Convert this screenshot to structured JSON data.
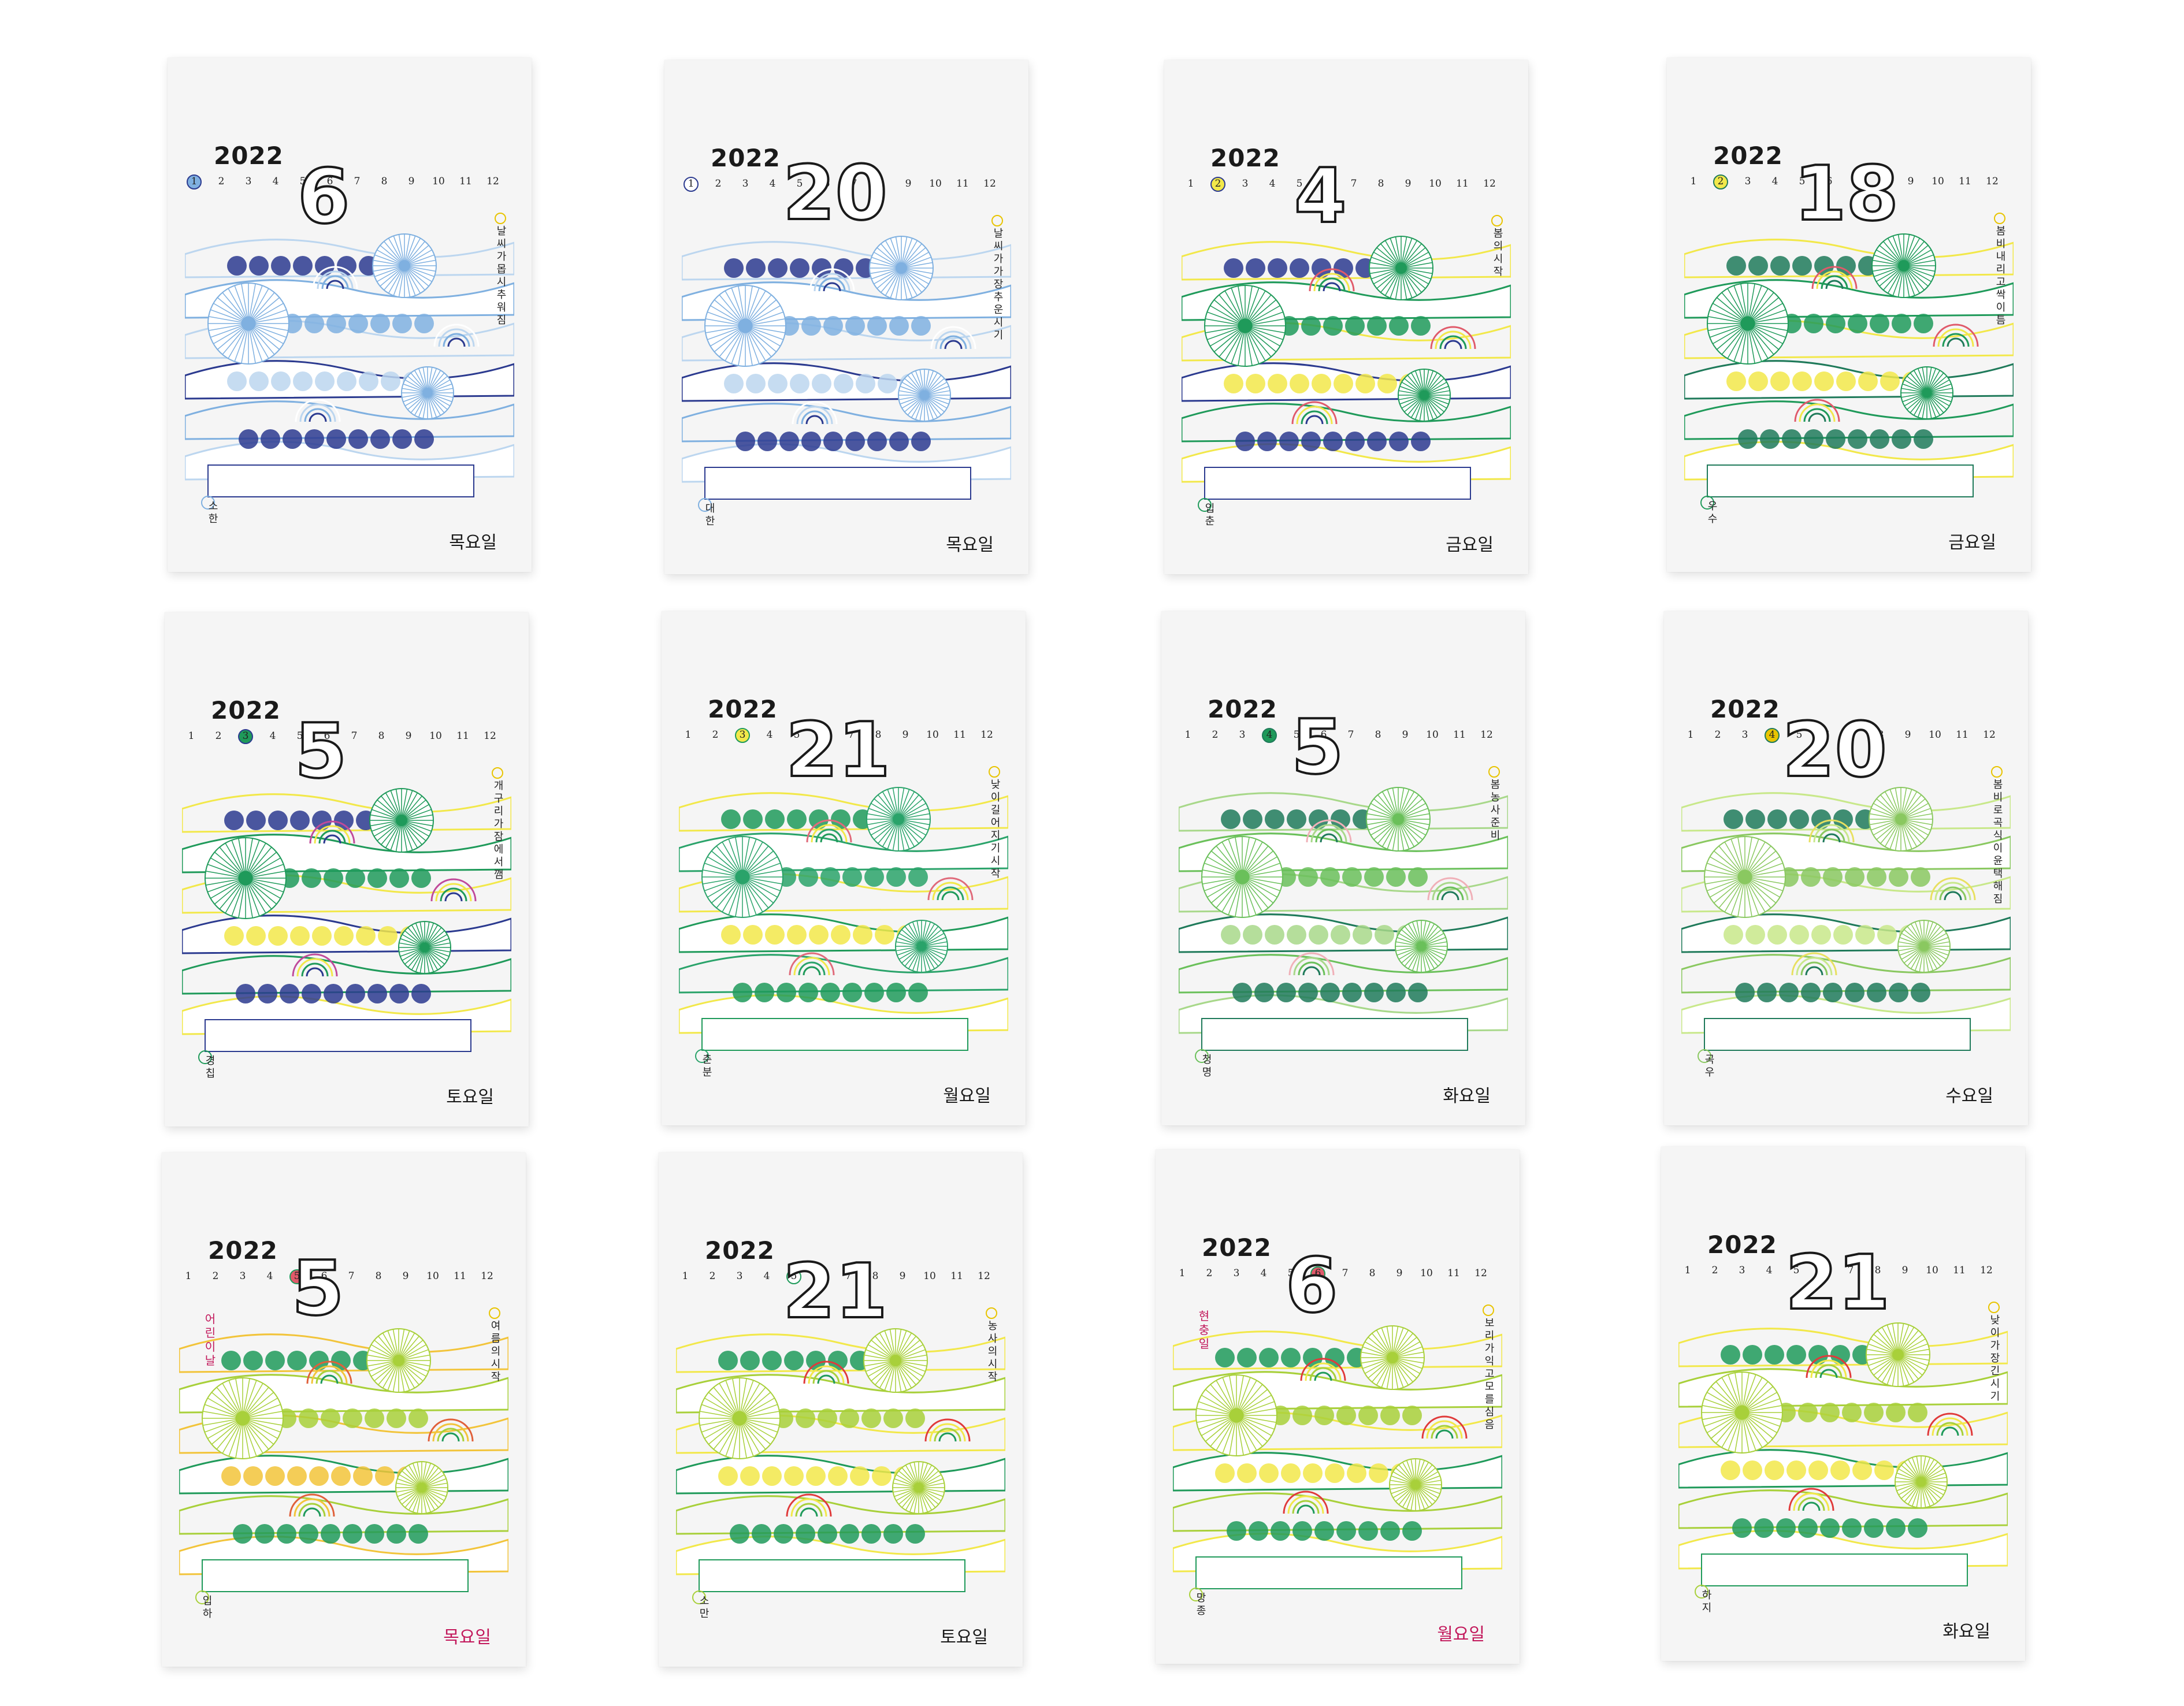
{
  "year": "2022",
  "months": [
    "1",
    "2",
    "3",
    "4",
    "5",
    "6",
    "7",
    "8",
    "9",
    "10",
    "11",
    "12"
  ],
  "cards": [
    {
      "day": "6",
      "month": 1,
      "vertical": "날씨가 몹시 추워짐",
      "term": "소한",
      "weekday": "목요일",
      "palette": {
        "a": "#2b3a8f",
        "b": "#7fb0e0",
        "c": "#bcd6ef",
        "d": "#ffffff",
        "dot": "#7fb0e0"
      }
    },
    {
      "day": "20",
      "month": 1,
      "vertical": "날씨가 가장 추운 시기",
      "term": "대한",
      "weekday": "목요일",
      "palette": {
        "a": "#2b3a8f",
        "b": "#7fb0e0",
        "c": "#bcd6ef",
        "d": "#ffffff",
        "dot": "#ffffff"
      }
    },
    {
      "day": "4",
      "month": 2,
      "vertical": "봄의 시작",
      "term": "입춘",
      "weekday": "금요일",
      "palette": {
        "a": "#2b3a8f",
        "b": "#1f9a5a",
        "c": "#f2e84a",
        "d": "#e05a6a",
        "dot": "#f2e84a"
      }
    },
    {
      "day": "18",
      "month": 2,
      "vertical": "봄비 내리고 싹이 틈",
      "term": "우수",
      "weekday": "금요일",
      "palette": {
        "a": "#1f7a5a",
        "b": "#1f9a5a",
        "c": "#f2e84a",
        "d": "#e05a6a",
        "dot": "#f2e84a"
      }
    },
    {
      "day": "5",
      "month": 3,
      "vertical": "개구리가 잠에서 깸",
      "term": "경칩",
      "weekday": "토요일",
      "palette": {
        "a": "#2b3a8f",
        "b": "#1f9a5a",
        "c": "#f2e84a",
        "d": "#c04a9a",
        "dot": "#1f9a5a"
      }
    },
    {
      "day": "21",
      "month": 3,
      "vertical": "낮이 길어지기 시작",
      "term": "춘분",
      "weekday": "월요일",
      "palette": {
        "a": "#1f9a5a",
        "b": "#2aa36a",
        "c": "#f2e84a",
        "d": "#e06a7a",
        "dot": "#f2e84a"
      }
    },
    {
      "day": "5",
      "month": 4,
      "vertical": "봄 농사 준비",
      "term": "청명",
      "weekday": "화요일",
      "palette": {
        "a": "#1f7a5a",
        "b": "#6ac05a",
        "c": "#a8d88a",
        "d": "#f0b0b8",
        "dot": "#1f9a5a"
      }
    },
    {
      "day": "20",
      "month": 4,
      "vertical": "봄비로 곡식이 윤택해짐",
      "term": "곡우",
      "weekday": "수요일",
      "palette": {
        "a": "#1f7a5a",
        "b": "#8ac860",
        "c": "#c8e88a",
        "d": "#e8e060",
        "dot": "#e8c400"
      }
    },
    {
      "day": "5",
      "month": 5,
      "vertical": "여름의 시작",
      "term": "입하",
      "weekday": "목요일",
      "palette": {
        "a": "#1f9a5a",
        "b": "#a8d03a",
        "c": "#f2c43a",
        "d": "#e0603a",
        "dot": "#e05a6a"
      }
    },
    {
      "day": "21",
      "month": 5,
      "vertical": "농사의 시작",
      "term": "소만",
      "weekday": "토요일",
      "palette": {
        "a": "#1f9a5a",
        "b": "#a8d03a",
        "c": "#f2e84a",
        "d": "#e03a3a",
        "dot": "#ffffff"
      }
    },
    {
      "day": "6",
      "month": 6,
      "vertical": "보리가 익고 모를 심음",
      "term": "망종",
      "weekday": "월요일",
      "palette": {
        "a": "#1f9a5a",
        "b": "#a8d03a",
        "c": "#f2e84a",
        "d": "#e03a3a",
        "dot": "#e05a6a"
      }
    },
    {
      "day": "21",
      "month": 6,
      "vertical": "낮이 가장 긴 시기",
      "term": "하지",
      "weekday": "화요일",
      "palette": {
        "a": "#1f9a5a",
        "b": "#a8d03a",
        "c": "#f2e84a",
        "d": "#e03a3a",
        "dot": "#f2e84a"
      }
    }
  ],
  "holiday": {
    "card": 8,
    "text": "어린이날"
  },
  "hyunchung": {
    "card": 10,
    "text": "현충일"
  }
}
